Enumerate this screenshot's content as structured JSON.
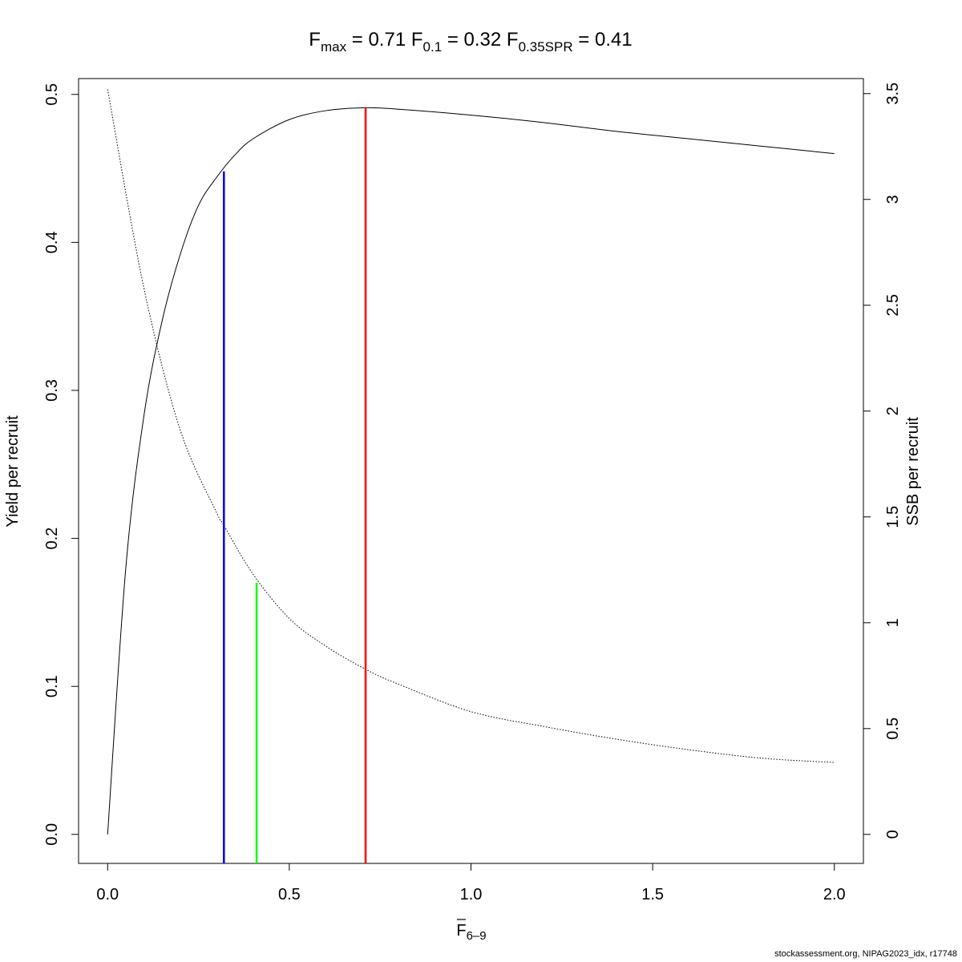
{
  "chart_data": {
    "type": "line",
    "title": {
      "fmax": {
        "base": "F",
        "sub": "max",
        "value": "0.71"
      },
      "f01": {
        "base": "F",
        "sub": "0.1",
        "value": "0.32"
      },
      "fspr": {
        "base": "F",
        "sub": "0.35SPR",
        "value": "0.41"
      }
    },
    "xlabel": {
      "base": "F",
      "sub": "6–9",
      "overline": true
    },
    "ylabel_left": "Yield per recruit",
    "ylabel_right": "SSB per recruit",
    "xlim": [
      -0.08,
      2.08
    ],
    "ylim_left": [
      -0.0196,
      0.5107
    ],
    "ylim_right": [
      -0.137,
      3.571
    ],
    "x_ticks": [
      {
        "value": 0.0,
        "label": "0.0"
      },
      {
        "value": 0.5,
        "label": "0.5"
      },
      {
        "value": 1.0,
        "label": "1.0"
      },
      {
        "value": 1.5,
        "label": "1.5"
      },
      {
        "value": 2.0,
        "label": "2.0"
      }
    ],
    "y_left_ticks": [
      {
        "value": 0.0,
        "label": "0.0"
      },
      {
        "value": 0.1,
        "label": "0.1"
      },
      {
        "value": 0.2,
        "label": "0.2"
      },
      {
        "value": 0.3,
        "label": "0.3"
      },
      {
        "value": 0.4,
        "label": "0.4"
      },
      {
        "value": 0.5,
        "label": "0.5"
      }
    ],
    "y_right_ticks": [
      {
        "value": 0.0,
        "label": "0"
      },
      {
        "value": 0.5,
        "label": "0.5"
      },
      {
        "value": 1.0,
        "label": "1"
      },
      {
        "value": 1.5,
        "label": "1.5"
      },
      {
        "value": 2.0,
        "label": "2"
      },
      {
        "value": 2.5,
        "label": "2.5"
      },
      {
        "value": 3.0,
        "label": "3"
      },
      {
        "value": 3.5,
        "label": "3.5"
      }
    ],
    "series": [
      {
        "axis": "left",
        "style": "solid",
        "color": "#000000",
        "x": [
          0.0,
          0.05,
          0.1,
          0.15,
          0.2,
          0.25,
          0.3,
          0.35,
          0.4,
          0.5,
          0.6,
          0.71,
          0.8,
          1.0,
          1.2,
          1.4,
          1.6,
          1.8,
          2.0
        ],
        "y": [
          0.0,
          0.18,
          0.283,
          0.347,
          0.392,
          0.425,
          0.444,
          0.459,
          0.47,
          0.483,
          0.489,
          0.491,
          0.49,
          0.486,
          0.481,
          0.475,
          0.47,
          0.465,
          0.46
        ]
      },
      {
        "axis": "right",
        "style": "dotted",
        "color": "#000000",
        "x": [
          0.0,
          0.1,
          0.2,
          0.3,
          0.32,
          0.4,
          0.5,
          0.6,
          0.71,
          0.8,
          1.0,
          1.2,
          1.4,
          1.6,
          1.8,
          2.0
        ],
        "y": [
          3.52,
          2.58,
          1.91,
          1.52,
          1.46,
          1.23,
          1.02,
          0.89,
          0.78,
          0.71,
          0.58,
          0.51,
          0.45,
          0.4,
          0.36,
          0.34
        ]
      }
    ],
    "reference_lines": [
      {
        "label": "F0.1",
        "x": 0.32,
        "y_top": 0.448,
        "color": "#0000ff"
      },
      {
        "label": "F0.35SPR",
        "x": 0.41,
        "y_top": 0.17,
        "color": "#00ff00"
      },
      {
        "label": "Fmax",
        "x": 0.71,
        "y_top": 0.491,
        "color": "#ff0000"
      }
    ],
    "footer": "stockassessment.org, NIPAG2023_idx, r17748"
  }
}
